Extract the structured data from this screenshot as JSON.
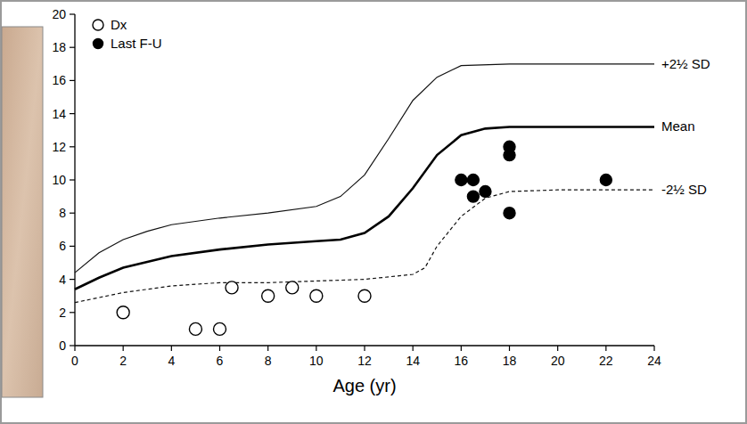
{
  "chart_data": {
    "type": "scatter",
    "x_label": "Age (yr)",
    "xlim": [
      0,
      24
    ],
    "xticks": [
      0,
      2,
      4,
      6,
      8,
      10,
      12,
      14,
      16,
      18,
      20,
      22,
      24
    ],
    "ylim": [
      0,
      20
    ],
    "yticks": [
      0,
      2,
      4,
      6,
      8,
      10,
      12,
      14,
      16,
      18,
      20
    ],
    "legend": "top-left",
    "series": [
      {
        "name": "+2½ SD",
        "type": "line",
        "color": "#111111",
        "line_style": "solid",
        "x": [
          0,
          1,
          2,
          3,
          4,
          6,
          8,
          10,
          11,
          12,
          13,
          14,
          15,
          16,
          18,
          20,
          22,
          24
        ],
        "values": [
          4.4,
          5.6,
          6.4,
          6.9,
          7.3,
          7.7,
          8.0,
          8.4,
          9.0,
          10.3,
          12.5,
          14.8,
          16.2,
          16.9,
          17.0,
          17.0,
          17.0,
          17.0
        ]
      },
      {
        "name": "Mean",
        "type": "line",
        "color": "#000000",
        "line_style": "thick",
        "x": [
          0,
          1,
          2,
          4,
          6,
          8,
          10,
          11,
          12,
          13,
          14,
          15,
          16,
          17,
          18,
          24
        ],
        "values": [
          3.4,
          4.1,
          4.7,
          5.4,
          5.8,
          6.1,
          6.3,
          6.4,
          6.8,
          7.8,
          9.5,
          11.5,
          12.7,
          13.1,
          13.2,
          13.2
        ]
      },
      {
        "name": "-2½ SD",
        "type": "line",
        "color": "#111111",
        "line_style": "dashed",
        "x": [
          0,
          2,
          4,
          6,
          8,
          10,
          12,
          14,
          14.5,
          15,
          16,
          17,
          18,
          20,
          24
        ],
        "values": [
          2.6,
          3.2,
          3.6,
          3.8,
          3.8,
          3.9,
          4.0,
          4.3,
          4.7,
          6.0,
          7.8,
          8.9,
          9.3,
          9.4,
          9.4
        ]
      },
      {
        "name": "Dx",
        "type": "scatter",
        "color": "#000000",
        "marker": "open-circle",
        "x": [
          2,
          5,
          6,
          6.5,
          8,
          9,
          10,
          12
        ],
        "values": [
          2,
          1,
          1,
          3.5,
          3,
          3.5,
          3,
          3
        ]
      },
      {
        "name": "Last F-U",
        "type": "scatter",
        "color": "#000000",
        "marker": "filled-circle",
        "x": [
          16,
          16.5,
          16.5,
          17,
          18,
          18,
          18,
          22
        ],
        "values": [
          10,
          10,
          9,
          9.3,
          12,
          11.5,
          8,
          10
        ]
      }
    ]
  }
}
